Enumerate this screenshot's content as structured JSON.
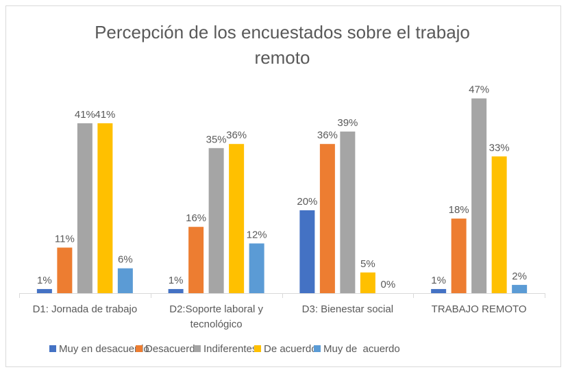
{
  "chart_data": {
    "type": "bar",
    "title": "Percepción de los encuestados sobre el trabajo remoto",
    "title_lines": [
      "Percepción de los encuestados sobre el trabajo",
      "remoto"
    ],
    "categories": [
      "D1: Jornada de trabajo",
      "D2:Soporte laboral y tecnológico",
      "D3: Bienestar social",
      "TRABAJO REMOTO"
    ],
    "category_lines": [
      [
        "D1: Jornada de trabajo"
      ],
      [
        "D2:Soporte laboral y",
        "tecnológico"
      ],
      [
        "D3: Bienestar social"
      ],
      [
        "TRABAJO REMOTO"
      ]
    ],
    "series": [
      {
        "name": "Muy en desacuerdo",
        "color": "#4472C4",
        "values": [
          1,
          1,
          20,
          1
        ]
      },
      {
        "name": "Desacuerdo",
        "color": "#ED7D31",
        "values": [
          11,
          16,
          36,
          18
        ]
      },
      {
        "name": "Indiferentes",
        "color": "#A5A5A5",
        "values": [
          41,
          35,
          39,
          47
        ]
      },
      {
        "name": "De acuerdo",
        "color": "#FFC000",
        "values": [
          41,
          36,
          5,
          33
        ]
      },
      {
        "name": "Muy de  acuerdo",
        "color": "#5B9BD5",
        "values": [
          6,
          12,
          0,
          2
        ]
      }
    ],
    "value_suffix": "%",
    "ylim": [
      0,
      50
    ],
    "xlabel": "",
    "ylabel": "",
    "grid": false,
    "legend_position": "bottom",
    "data_labels": true
  }
}
